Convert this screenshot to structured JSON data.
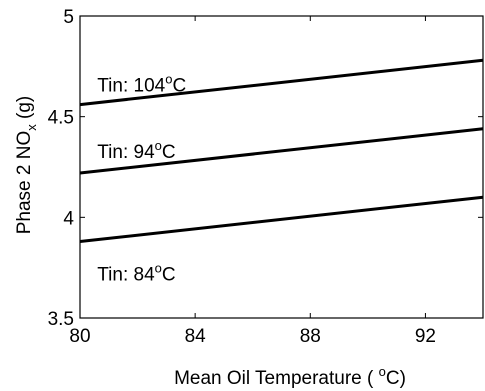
{
  "chart_data": {
    "type": "line",
    "xlabel": {
      "pre": "Mean Oil Temperature ( ",
      "sup": "o",
      "post": "C)"
    },
    "ylabel": {
      "pre": "Phase 2 NO",
      "sub": "x",
      "post": " (g)"
    },
    "xlim": [
      80,
      94
    ],
    "ylim": [
      3.5,
      5
    ],
    "xticks": [
      80,
      84,
      88,
      92
    ],
    "xtick_labels": [
      "80",
      "84",
      "88",
      "92"
    ],
    "yticks": [
      3.5,
      4,
      4.5,
      5
    ],
    "ytick_labels": [
      "3.5",
      "4",
      "4.5",
      "5"
    ],
    "grid": false,
    "line_color": "#000000",
    "series": [
      {
        "x": [
          80,
          94
        ],
        "y": [
          4.56,
          4.78
        ],
        "label": {
          "pre": "Tin: 104",
          "sup": "o",
          "post": "C",
          "x": 80.6,
          "y": 4.66
        }
      },
      {
        "x": [
          80,
          94
        ],
        "y": [
          4.22,
          4.44
        ],
        "label": {
          "pre": "Tin: 94",
          "sup": "o",
          "post": "C",
          "x": 80.6,
          "y": 4.33
        }
      },
      {
        "x": [
          80,
          94
        ],
        "y": [
          3.88,
          4.1
        ],
        "label": {
          "pre": "Tin: 84",
          "sup": "o",
          "post": "C",
          "x": 80.6,
          "y": 3.72
        }
      }
    ]
  }
}
